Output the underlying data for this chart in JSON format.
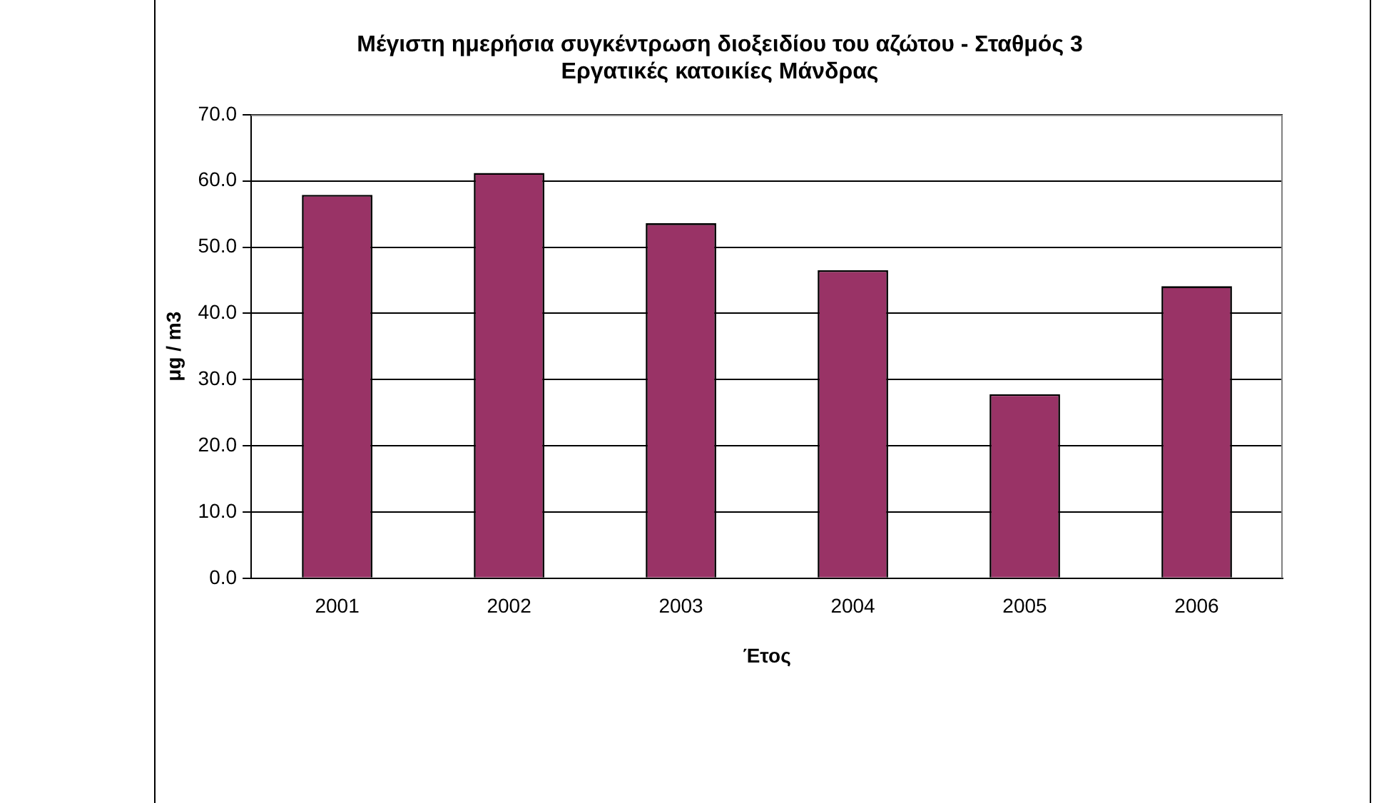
{
  "chart_data": {
    "type": "bar",
    "title": "Μέγιστη ημερήσια συγκέντρωση διοξειδίου του αζώτου - Σταθμός 3\nΕργατικές κατοικίες Μάνδρας",
    "xlabel": "Έτος",
    "ylabel": "μg / m3",
    "categories": [
      "2001",
      "2002",
      "2003",
      "2004",
      "2005",
      "2006"
    ],
    "values": [
      57.9,
      61.2,
      53.6,
      46.5,
      27.8,
      44.1
    ],
    "color": "#993366",
    "ylim": [
      0,
      70
    ],
    "yticks": [
      {
        "value": 0,
        "label": "0.0"
      },
      {
        "value": 10,
        "label": "10.0"
      },
      {
        "value": 20,
        "label": "20.0"
      },
      {
        "value": 30,
        "label": "30.0"
      },
      {
        "value": 40,
        "label": "40.0"
      },
      {
        "value": 50,
        "label": "50.0"
      },
      {
        "value": 60,
        "label": "60.0"
      },
      {
        "value": 70,
        "label": "70.0"
      }
    ],
    "grid": "y",
    "legend": false
  }
}
